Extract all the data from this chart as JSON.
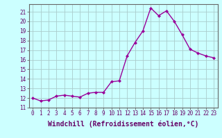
{
  "x": [
    0,
    1,
    2,
    3,
    4,
    5,
    6,
    7,
    8,
    9,
    10,
    11,
    12,
    13,
    14,
    15,
    16,
    17,
    18,
    19,
    20,
    21,
    22,
    23
  ],
  "y": [
    12.0,
    11.7,
    11.8,
    12.2,
    12.3,
    12.2,
    12.1,
    12.5,
    12.6,
    12.6,
    13.7,
    13.8,
    16.4,
    17.8,
    19.0,
    21.4,
    20.6,
    21.1,
    20.0,
    18.6,
    17.1,
    16.7,
    16.4,
    16.2
  ],
  "line_color": "#990099",
  "marker": "D",
  "marker_size": 2.0,
  "line_width": 1.0,
  "bg_color": "#ccffff",
  "grid_color": "#aacccc",
  "xlabel": "Windchill (Refroidissement éolien,°C)",
  "xlabel_fontsize": 7,
  "ylabel_ticks": [
    11,
    12,
    13,
    14,
    15,
    16,
    17,
    18,
    19,
    20,
    21
  ],
  "xlim": [
    -0.5,
    23.5
  ],
  "ylim": [
    11.0,
    21.8
  ],
  "xtick_labels": [
    "0",
    "1",
    "2",
    "3",
    "4",
    "5",
    "6",
    "7",
    "8",
    "9",
    "10",
    "11",
    "12",
    "13",
    "14",
    "15",
    "16",
    "17",
    "18",
    "19",
    "20",
    "21",
    "22",
    "23"
  ],
  "tick_fontsize": 5.5,
  "font_family": "monospace"
}
